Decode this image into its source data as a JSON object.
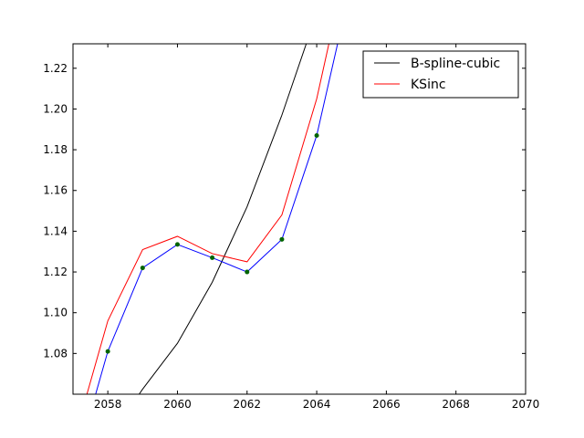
{
  "chart_data": {
    "type": "line",
    "title": "",
    "xlabel": "",
    "ylabel": "",
    "xlim": [
      2057,
      2070
    ],
    "ylim": [
      1.06,
      1.232
    ],
    "x_ticks": [
      2058,
      2060,
      2062,
      2064,
      2066,
      2068,
      2070
    ],
    "y_ticks": [
      1.08,
      1.1,
      1.12,
      1.14,
      1.16,
      1.18,
      1.2,
      1.22
    ],
    "grid": false,
    "legend_position": "top-right",
    "series": [
      {
        "name": "B-spline-cubic",
        "color": "#000000",
        "x": [
          2058.9,
          2059,
          2060,
          2061,
          2062,
          2063,
          2063.7
        ],
        "y": [
          1.06,
          1.0625,
          1.085,
          1.115,
          1.152,
          1.197,
          1.232
        ]
      },
      {
        "name": "KSinc",
        "color": "#ff0000",
        "x": [
          2057.4,
          2058,
          2059,
          2060,
          2061,
          2062,
          2063,
          2064,
          2064.35
        ],
        "y": [
          1.06,
          1.096,
          1.131,
          1.1375,
          1.129,
          1.125,
          1.148,
          1.205,
          1.232
        ]
      },
      {
        "color": "#0000ff",
        "x": [
          2057.65,
          2058,
          2059,
          2060,
          2061,
          2062,
          2063,
          2064,
          2064.6
        ],
        "y": [
          1.06,
          1.081,
          1.122,
          1.1335,
          1.127,
          1.12,
          1.136,
          1.187,
          1.232
        ]
      }
    ],
    "markers": {
      "color": "#006400",
      "x": [
        2058,
        2059,
        2060,
        2061,
        2062,
        2063,
        2064
      ],
      "y": [
        1.081,
        1.122,
        1.1335,
        1.127,
        1.12,
        1.136,
        1.187
      ]
    }
  }
}
